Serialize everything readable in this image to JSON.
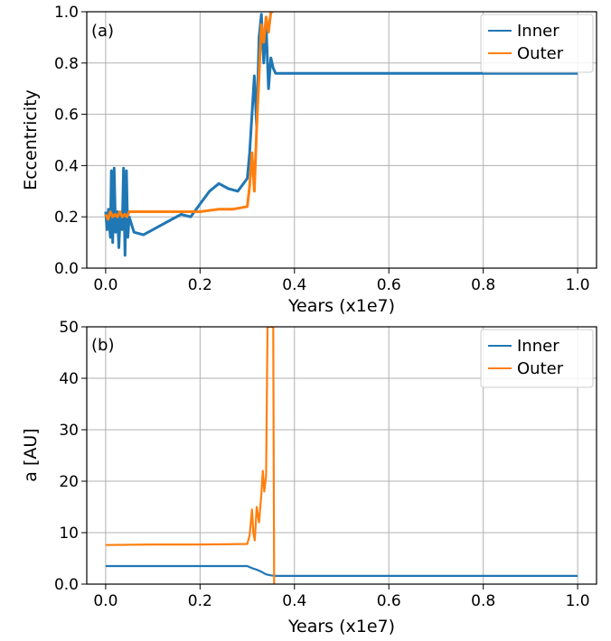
{
  "chart_data": [
    {
      "type": "line",
      "panel_label": "(a)",
      "xlabel": "Years (x1e7)",
      "ylabel": "Eccentricity",
      "xlim": [
        -0.04,
        1.04
      ],
      "ylim": [
        0.0,
        1.0
      ],
      "xticks": [
        "0.0",
        "0.2",
        "0.4",
        "0.6",
        "0.8",
        "1.0"
      ],
      "yticks": [
        "0.0",
        "0.2",
        "0.4",
        "0.6",
        "0.8",
        "1.0"
      ],
      "grid": true,
      "legend_position": "top-right",
      "series": [
        {
          "name": "Inner",
          "color": "#1f77b4",
          "x": [
            0.0,
            0.003,
            0.006,
            0.01,
            0.012,
            0.015,
            0.018,
            0.021,
            0.025,
            0.028,
            0.031,
            0.035,
            0.038,
            0.041,
            0.044,
            0.047,
            0.05,
            0.06,
            0.08,
            0.1,
            0.12,
            0.14,
            0.16,
            0.18,
            0.2,
            0.22,
            0.24,
            0.26,
            0.28,
            0.3,
            0.305,
            0.31,
            0.315,
            0.32,
            0.325,
            0.33,
            0.335,
            0.34,
            0.345,
            0.35,
            0.355,
            0.36,
            0.37,
            0.4,
            0.6,
            0.8,
            1.0
          ],
          "y": [
            0.22,
            0.15,
            0.23,
            0.12,
            0.38,
            0.1,
            0.39,
            0.14,
            0.22,
            0.08,
            0.21,
            0.15,
            0.39,
            0.05,
            0.38,
            0.12,
            0.2,
            0.14,
            0.13,
            0.15,
            0.17,
            0.19,
            0.21,
            0.2,
            0.25,
            0.3,
            0.33,
            0.31,
            0.3,
            0.35,
            0.45,
            0.6,
            0.75,
            0.55,
            0.9,
            0.99,
            0.8,
            0.95,
            0.7,
            0.82,
            0.78,
            0.76,
            0.76,
            0.76,
            0.76,
            0.76,
            0.76
          ]
        },
        {
          "name": "Outer",
          "color": "#ff7f0e",
          "x": [
            0.0,
            0.005,
            0.01,
            0.015,
            0.02,
            0.025,
            0.03,
            0.035,
            0.04,
            0.045,
            0.05,
            0.08,
            0.12,
            0.16,
            0.2,
            0.24,
            0.27,
            0.3,
            0.305,
            0.31,
            0.315,
            0.32,
            0.325,
            0.33,
            0.335,
            0.34,
            0.345,
            0.35,
            0.355
          ],
          "y": [
            0.21,
            0.19,
            0.22,
            0.2,
            0.21,
            0.2,
            0.22,
            0.2,
            0.21,
            0.2,
            0.22,
            0.22,
            0.22,
            0.22,
            0.22,
            0.23,
            0.23,
            0.24,
            0.32,
            0.45,
            0.3,
            0.55,
            0.75,
            0.95,
            0.88,
            0.98,
            0.92,
            1.0,
            1.0
          ]
        }
      ]
    },
    {
      "type": "line",
      "panel_label": "(b)",
      "xlabel": "Years (x1e7)",
      "ylabel": "a [AU]",
      "xlim": [
        -0.04,
        1.04
      ],
      "ylim": [
        0,
        50
      ],
      "xticks": [
        "0.0",
        "0.2",
        "0.4",
        "0.6",
        "0.8",
        "1.0"
      ],
      "yticks": [
        "0.0",
        "10",
        "20",
        "30",
        "40",
        "50"
      ],
      "grid": true,
      "legend_position": "top-right",
      "series": [
        {
          "name": "Inner",
          "color": "#1f77b4",
          "x": [
            0.0,
            0.1,
            0.2,
            0.3,
            0.31,
            0.32,
            0.33,
            0.34,
            0.35,
            0.36,
            0.4,
            0.6,
            0.8,
            1.0
          ],
          "y": [
            3.5,
            3.5,
            3.5,
            3.5,
            3.1,
            2.8,
            2.4,
            1.9,
            1.7,
            1.6,
            1.6,
            1.6,
            1.6,
            1.6
          ]
        },
        {
          "name": "Outer",
          "color": "#ff7f0e",
          "x": [
            0.0,
            0.1,
            0.2,
            0.3,
            0.305,
            0.31,
            0.313,
            0.316,
            0.32,
            0.325,
            0.33,
            0.333,
            0.336,
            0.34,
            0.343,
            0.346,
            0.35,
            0.352,
            0.355,
            0.357
          ],
          "y": [
            7.6,
            7.7,
            7.7,
            7.8,
            9.5,
            14.5,
            10.0,
            8.5,
            15.0,
            12.0,
            17.5,
            22.0,
            18.0,
            21.0,
            50.0,
            50.0,
            50.0,
            50.0,
            50.0,
            0.0
          ]
        }
      ]
    }
  ]
}
